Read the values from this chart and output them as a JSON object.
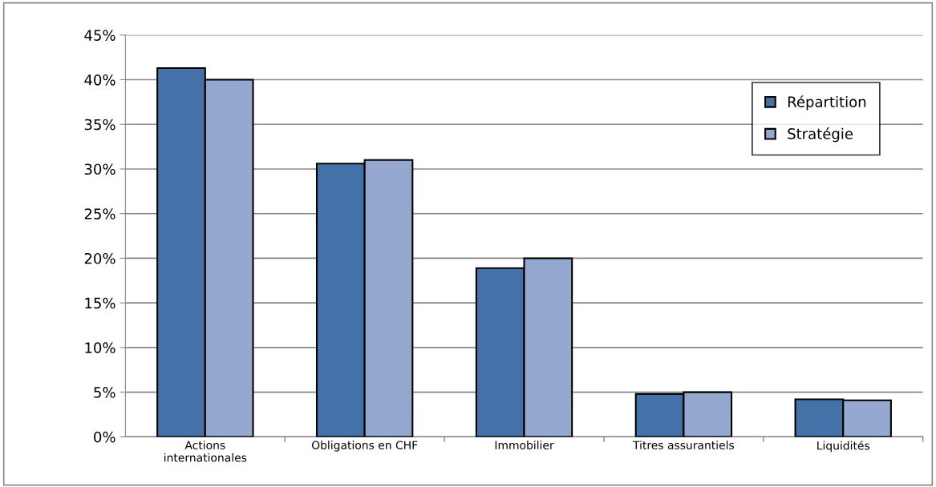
{
  "chart_data": {
    "type": "bar",
    "categories": [
      "Actions\ninternationales",
      "Obligations en CHF",
      "Immobilier",
      "Titres assurantiels",
      "Liquidités"
    ],
    "series": [
      {
        "name": "Répartition",
        "color": "#4472a8",
        "values": [
          41.3,
          30.6,
          18.9,
          4.8,
          4.2
        ]
      },
      {
        "name": "Stratégie",
        "color": "#95a9d0",
        "values": [
          40.0,
          31.0,
          20.0,
          5.0,
          4.1
        ]
      }
    ],
    "ylim": [
      0,
      45
    ],
    "yticks": [
      {
        "value": 0,
        "label": "0%"
      },
      {
        "value": 5,
        "label": "5%"
      },
      {
        "value": 10,
        "label": "10%"
      },
      {
        "value": 15,
        "label": "15%"
      },
      {
        "value": 20,
        "label": "20%"
      },
      {
        "value": 25,
        "label": "25%"
      },
      {
        "value": 30,
        "label": "30%"
      },
      {
        "value": 35,
        "label": "35%"
      },
      {
        "value": 40,
        "label": "40%"
      },
      {
        "value": 45,
        "label": "45%"
      }
    ],
    "grid": "y",
    "legend": "top right"
  }
}
